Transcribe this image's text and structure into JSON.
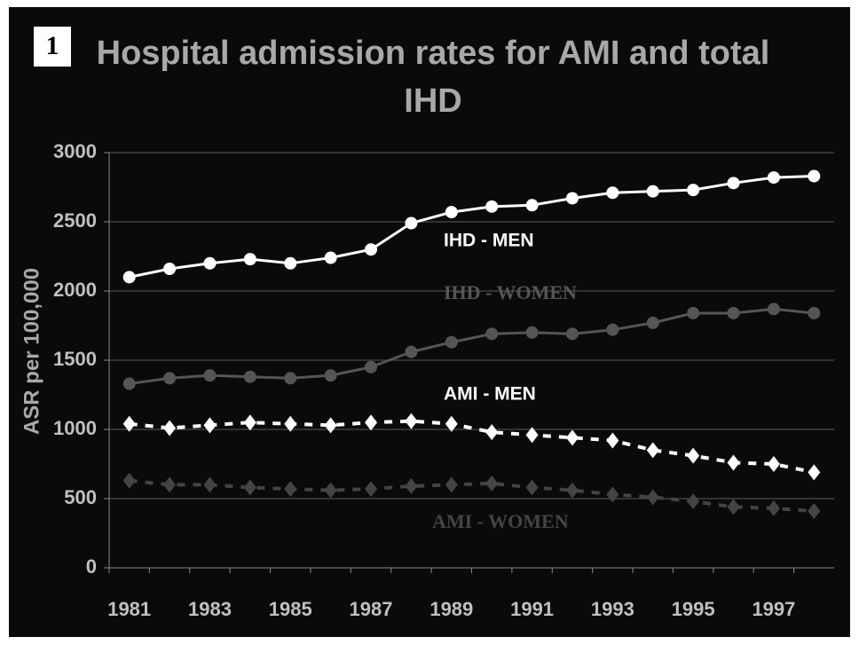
{
  "chart_data": {
    "type": "line",
    "panel_number": "1",
    "title": "Hospital admission rates for AMI and total IHD",
    "y_label": "ASR per 100,000",
    "categories": [
      "1981",
      null,
      "1983",
      null,
      "1985",
      null,
      "1987",
      null,
      "1989",
      null,
      "1991",
      null,
      "1993",
      null,
      "1995",
      null,
      "1997",
      null
    ],
    "series": [
      {
        "name": "IHD - MEN",
        "color": "#ffffff",
        "marker": "circle",
        "dashed": false,
        "values": [
          2100,
          2160,
          2200,
          2230,
          2200,
          2240,
          2300,
          2490,
          2570,
          2610,
          2620,
          2670,
          2710,
          2720,
          2730,
          2780,
          2820,
          2830
        ]
      },
      {
        "name": "IHD - WOMEN",
        "color": "#555555",
        "marker": "circle",
        "dashed": false,
        "values": [
          1330,
          1370,
          1390,
          1380,
          1370,
          1390,
          1450,
          1560,
          1630,
          1690,
          1700,
          1690,
          1720,
          1770,
          1840,
          1840,
          1870,
          1840
        ]
      },
      {
        "name": "AMI - MEN",
        "color": "#ffffff",
        "marker": "diamond",
        "dashed": true,
        "values": [
          1040,
          1010,
          1030,
          1050,
          1040,
          1030,
          1050,
          1060,
          1040,
          980,
          960,
          940,
          920,
          850,
          810,
          760,
          750,
          690
        ]
      },
      {
        "name": "AMI - WOMEN",
        "color": "#444444",
        "marker": "diamond",
        "dashed": true,
        "values": [
          630,
          600,
          600,
          580,
          570,
          560,
          570,
          590,
          600,
          610,
          580,
          560,
          530,
          510,
          480,
          440,
          430,
          410
        ]
      }
    ],
    "ylim": [
      0,
      3000
    ],
    "yticks": [
      0,
      500,
      1000,
      1500,
      2000,
      2500,
      3000
    ],
    "grid": true
  }
}
